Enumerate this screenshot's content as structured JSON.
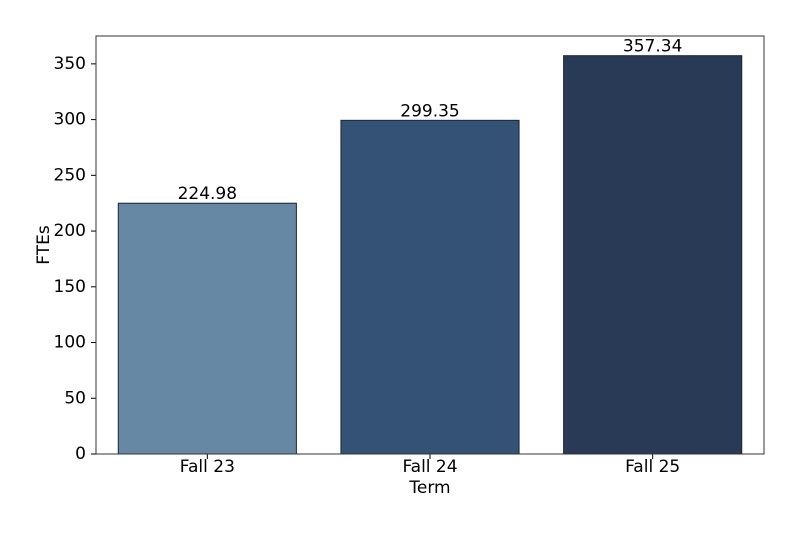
{
  "chart_data": {
    "type": "bar",
    "x_label": "Term",
    "y_label": "FTEs",
    "categories": [
      "Fall 23",
      "Fall 24",
      "Fall 25"
    ],
    "values": [
      224.98,
      299.35,
      357.34
    ],
    "colors": [
      "#6788a5",
      "#345275",
      "#283a55"
    ],
    "ylim": [
      0,
      375
    ],
    "yticks": [
      0,
      50,
      100,
      150,
      200,
      250,
      300,
      350
    ],
    "grid": false
  }
}
